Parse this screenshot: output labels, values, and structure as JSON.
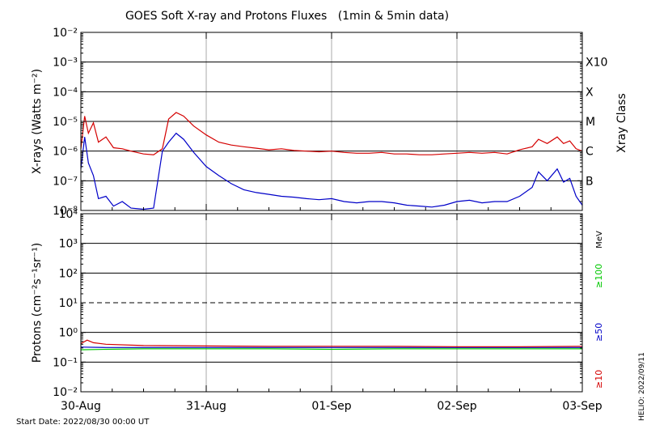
{
  "chart_data": [
    {
      "type": "line",
      "title": "GOES Soft X-ray and Protons Fluxes   (1min & 5min data)",
      "ylabel": "X-rays (Watts m⁻²)",
      "right_label": "Xray Class",
      "yscale": "log",
      "ylim": [
        1e-08,
        0.01
      ],
      "grid": true,
      "y_tick_labels": [
        "10⁻⁸",
        "10⁻⁷",
        "10⁻⁶",
        "10⁻⁵",
        "10⁻⁴",
        "10⁻³",
        "10⁻²"
      ],
      "class_labels": [
        {
          "label": "B",
          "value": 1e-07
        },
        {
          "label": "C",
          "value": 1e-06
        },
        {
          "label": "M",
          "value": 1e-05
        },
        {
          "label": "X",
          "value": 0.0001
        },
        {
          "label": "X10",
          "value": 0.001
        }
      ],
      "x_tick_labels": [
        "30-Aug",
        "31-Aug",
        "01-Sep",
        "02-Sep",
        "03-Sep"
      ],
      "xlim_days": [
        0,
        4
      ],
      "series": [
        {
          "color": "#d40000",
          "points": [
            [
              0,
              1.2e-06
            ],
            [
              0.03,
              1.5e-05
            ],
            [
              0.06,
              4e-06
            ],
            [
              0.1,
              9e-06
            ],
            [
              0.14,
              2e-06
            ],
            [
              0.2,
              3e-06
            ],
            [
              0.26,
              1.3e-06
            ],
            [
              0.33,
              1.2e-06
            ],
            [
              0.4,
              1e-06
            ],
            [
              0.5,
              8e-07
            ],
            [
              0.58,
              7.5e-07
            ],
            [
              0.65,
              1.2e-06
            ],
            [
              0.7,
              1.2e-05
            ],
            [
              0.76,
              2e-05
            ],
            [
              0.82,
              1.5e-05
            ],
            [
              0.9,
              7e-06
            ],
            [
              1.0,
              3.5e-06
            ],
            [
              1.1,
              2e-06
            ],
            [
              1.2,
              1.6e-06
            ],
            [
              1.3,
              1.4e-06
            ],
            [
              1.4,
              1.25e-06
            ],
            [
              1.5,
              1.1e-06
            ],
            [
              1.6,
              1.2e-06
            ],
            [
              1.7,
              1.05e-06
            ],
            [
              1.8,
              1e-06
            ],
            [
              1.9,
              9.5e-07
            ],
            [
              2.0,
              1e-06
            ],
            [
              2.1,
              9e-07
            ],
            [
              2.2,
              8.5e-07
            ],
            [
              2.3,
              8.5e-07
            ],
            [
              2.4,
              9e-07
            ],
            [
              2.5,
              8e-07
            ],
            [
              2.6,
              8e-07
            ],
            [
              2.7,
              7.5e-07
            ],
            [
              2.8,
              7.5e-07
            ],
            [
              2.9,
              8e-07
            ],
            [
              3.0,
              8.5e-07
            ],
            [
              3.1,
              9e-07
            ],
            [
              3.2,
              8.5e-07
            ],
            [
              3.3,
              9e-07
            ],
            [
              3.4,
              8e-07
            ],
            [
              3.5,
              1.1e-06
            ],
            [
              3.6,
              1.4e-06
            ],
            [
              3.65,
              2.5e-06
            ],
            [
              3.72,
              1.8e-06
            ],
            [
              3.8,
              3e-06
            ],
            [
              3.85,
              1.8e-06
            ],
            [
              3.9,
              2.2e-06
            ],
            [
              3.95,
              1.2e-06
            ],
            [
              4.0,
              1e-06
            ]
          ]
        },
        {
          "color": "#0000c8",
          "points": [
            [
              0,
              2.5e-07
            ],
            [
              0.03,
              3e-06
            ],
            [
              0.06,
              4e-07
            ],
            [
              0.1,
              1.5e-07
            ],
            [
              0.14,
              2.5e-08
            ],
            [
              0.2,
              3e-08
            ],
            [
              0.26,
              1.4e-08
            ],
            [
              0.33,
              2e-08
            ],
            [
              0.4,
              1.2e-08
            ],
            [
              0.5,
              1.1e-08
            ],
            [
              0.58,
              1.2e-08
            ],
            [
              0.65,
              1e-06
            ],
            [
              0.7,
              2e-06
            ],
            [
              0.76,
              4e-06
            ],
            [
              0.82,
              2.5e-06
            ],
            [
              0.9,
              9e-07
            ],
            [
              1.0,
              3e-07
            ],
            [
              1.1,
              1.5e-07
            ],
            [
              1.2,
              8e-08
            ],
            [
              1.3,
              5e-08
            ],
            [
              1.4,
              4e-08
            ],
            [
              1.5,
              3.5e-08
            ],
            [
              1.6,
              3e-08
            ],
            [
              1.7,
              2.8e-08
            ],
            [
              1.8,
              2.5e-08
            ],
            [
              1.9,
              2.3e-08
            ],
            [
              2.0,
              2.5e-08
            ],
            [
              2.1,
              2e-08
            ],
            [
              2.2,
              1.8e-08
            ],
            [
              2.3,
              2e-08
            ],
            [
              2.4,
              2e-08
            ],
            [
              2.5,
              1.8e-08
            ],
            [
              2.6,
              1.5e-08
            ],
            [
              2.7,
              1.4e-08
            ],
            [
              2.8,
              1.3e-08
            ],
            [
              2.9,
              1.5e-08
            ],
            [
              3.0,
              2e-08
            ],
            [
              3.1,
              2.2e-08
            ],
            [
              3.2,
              1.8e-08
            ],
            [
              3.3,
              2e-08
            ],
            [
              3.4,
              2e-08
            ],
            [
              3.5,
              3e-08
            ],
            [
              3.6,
              6e-08
            ],
            [
              3.65,
              2e-07
            ],
            [
              3.72,
              1e-07
            ],
            [
              3.8,
              2.5e-07
            ],
            [
              3.85,
              9e-08
            ],
            [
              3.9,
              1.2e-07
            ],
            [
              3.95,
              3e-08
            ],
            [
              4.0,
              1.5e-08
            ]
          ]
        }
      ]
    },
    {
      "type": "line",
      "ylabel": "Protons (cm⁻²s⁻¹sr⁻¹)",
      "yscale": "log",
      "ylim": [
        0.01,
        10000
      ],
      "grid": true,
      "threshold_line": {
        "value": 10,
        "style": "dashed"
      },
      "y_tick_labels": [
        "10⁻²",
        "10⁻¹",
        "10⁰",
        "10¹",
        "10²",
        "10³",
        "10⁴"
      ],
      "x_tick_labels": [
        "30-Aug",
        "31-Aug",
        "01-Sep",
        "02-Sep",
        "03-Sep"
      ],
      "xlim_days": [
        0,
        4
      ],
      "unit_label": "MeV",
      "series": [
        {
          "name": "≥100",
          "color": "#00c800",
          "points": [
            [
              0,
              0.26
            ],
            [
              0.2,
              0.27
            ],
            [
              0.5,
              0.28
            ],
            [
              1.0,
              0.28
            ],
            [
              1.5,
              0.28
            ],
            [
              2.0,
              0.27
            ],
            [
              2.5,
              0.28
            ],
            [
              3.0,
              0.28
            ],
            [
              3.5,
              0.28
            ],
            [
              4.0,
              0.28
            ]
          ]
        },
        {
          "name": "≥50",
          "color": "#0000c8",
          "points": [
            [
              0,
              0.32
            ],
            [
              0.2,
              0.31
            ],
            [
              0.5,
              0.31
            ],
            [
              1.0,
              0.31
            ],
            [
              1.5,
              0.31
            ],
            [
              2.0,
              0.31
            ],
            [
              2.5,
              0.31
            ],
            [
              3.0,
              0.31
            ],
            [
              3.5,
              0.31
            ],
            [
              4.0,
              0.31
            ]
          ]
        },
        {
          "name": "≥10",
          "color": "#d40000",
          "points": [
            [
              0,
              0.42
            ],
            [
              0.05,
              0.55
            ],
            [
              0.1,
              0.45
            ],
            [
              0.2,
              0.4
            ],
            [
              0.5,
              0.36
            ],
            [
              1.0,
              0.35
            ],
            [
              1.5,
              0.34
            ],
            [
              2.0,
              0.34
            ],
            [
              2.5,
              0.34
            ],
            [
              3.0,
              0.33
            ],
            [
              3.5,
              0.33
            ],
            [
              4.0,
              0.34
            ]
          ]
        }
      ]
    }
  ],
  "footer": {
    "start_date": "Start Date: 2022/08/30 00:00 UT",
    "credit": "HELIO: 2022/09/11"
  }
}
